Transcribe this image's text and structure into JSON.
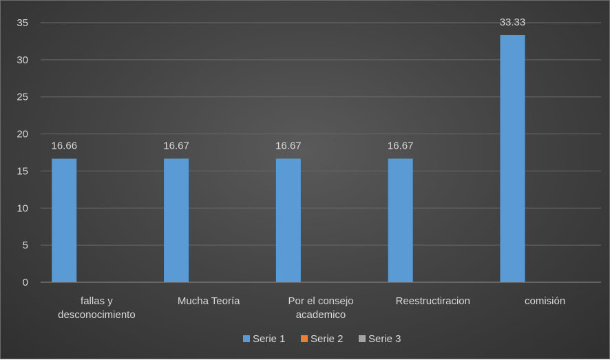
{
  "chart_data": {
    "type": "bar",
    "categories": [
      [
        "fallas y",
        "desconocimiento"
      ],
      [
        "Mucha Teoría"
      ],
      [
        "Por el consejo",
        "academico"
      ],
      [
        "Reestructiracion"
      ],
      [
        "comisión"
      ]
    ],
    "series": [
      {
        "name": "Serie 1",
        "values": [
          16.66,
          16.67,
          16.67,
          16.67,
          33.33
        ],
        "color": "#5b9bd5"
      },
      {
        "name": "Serie 2",
        "values": [
          null,
          null,
          null,
          null,
          null
        ],
        "color": "#ed7d31"
      },
      {
        "name": "Serie 3",
        "values": [
          null,
          null,
          null,
          null,
          null
        ],
        "color": "#a5a5a5"
      }
    ],
    "data_labels": [
      "16.66",
      "16.67",
      "16.67",
      "16.67",
      "33.33"
    ],
    "ylim": [
      0,
      35
    ],
    "yticks": [
      0,
      5,
      10,
      15,
      20,
      25,
      30,
      35
    ],
    "grid": true,
    "legend_position": "bottom"
  }
}
